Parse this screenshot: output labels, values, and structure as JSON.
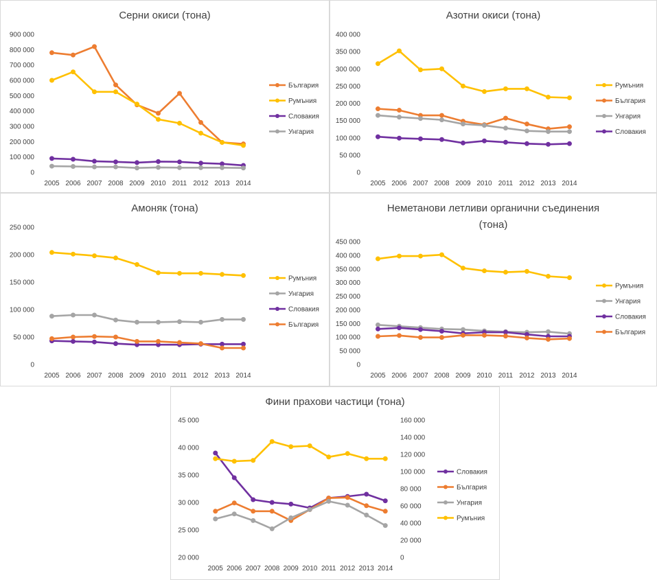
{
  "colors": {
    "bulgaria": "#ED7D31",
    "romania": "#FFC000",
    "slovakia": "#7030A0",
    "hungary": "#A5A5A5"
  },
  "chart_data": [
    {
      "type": "line",
      "title": "Серни окиси (тона)",
      "x": [
        "2005",
        "2006",
        "2007",
        "2008",
        "2009",
        "2010",
        "2011",
        "2012",
        "2013",
        "2014"
      ],
      "ylim": [
        0,
        900000
      ],
      "yticks": [
        "0",
        "100 000",
        "200 000",
        "300 000",
        "400 000",
        "500 000",
        "600 000",
        "700 000",
        "800 000",
        "900 000"
      ],
      "legend": "right",
      "series": [
        {
          "name": "България",
          "color": "#ED7D31",
          "values": [
            780000,
            765000,
            820000,
            570000,
            440000,
            385000,
            515000,
            325000,
            195000,
            185000
          ]
        },
        {
          "name": "Румъния",
          "color": "#FFC000",
          "values": [
            600000,
            655000,
            525000,
            525000,
            445000,
            345000,
            320000,
            255000,
            195000,
            175000
          ]
        },
        {
          "name": "Словакия",
          "color": "#7030A0",
          "values": [
            90000,
            85000,
            72000,
            68000,
            63000,
            70000,
            68000,
            60000,
            55000,
            45000
          ]
        },
        {
          "name": "Унгария",
          "color": "#A5A5A5",
          "values": [
            40000,
            38000,
            35000,
            35000,
            28000,
            32000,
            30000,
            30000,
            30000,
            28000
          ]
        }
      ]
    },
    {
      "type": "line",
      "title": "Азотни окиси (тона)",
      "x": [
        "2005",
        "2006",
        "2007",
        "2008",
        "2009",
        "2010",
        "2011",
        "2012",
        "2013",
        "2014"
      ],
      "ylim": [
        0,
        400000
      ],
      "yticks": [
        "0",
        "50 000",
        "100 000",
        "150 000",
        "200 000",
        "250 000",
        "300 000",
        "350 000",
        "400 000"
      ],
      "legend": "right",
      "series": [
        {
          "name": "Румъния",
          "color": "#FFC000",
          "values": [
            315000,
            352000,
            297000,
            300000,
            250000,
            234000,
            242000,
            242000,
            218000,
            216000
          ]
        },
        {
          "name": "България",
          "color": "#ED7D31",
          "values": [
            184000,
            180000,
            165000,
            165000,
            148000,
            138000,
            157000,
            140000,
            126000,
            132000
          ]
        },
        {
          "name": "Унгария",
          "color": "#A5A5A5",
          "values": [
            165000,
            160000,
            156000,
            152000,
            140000,
            136000,
            128000,
            120000,
            118000,
            118000
          ]
        },
        {
          "name": "Словакия",
          "color": "#7030A0",
          "values": [
            103000,
            99000,
            97000,
            95000,
            85000,
            91000,
            87000,
            83000,
            81000,
            83000
          ]
        }
      ]
    },
    {
      "type": "line",
      "title": "Амоняк (тона)",
      "x": [
        "2005",
        "2006",
        "2007",
        "2008",
        "2009",
        "2010",
        "2011",
        "2012",
        "2013",
        "2014"
      ],
      "ylim": [
        0,
        250000
      ],
      "yticks": [
        "0",
        "50 000",
        "100 000",
        "150 000",
        "200 000",
        "250 000"
      ],
      "legend": "right",
      "series": [
        {
          "name": "Румъния",
          "color": "#FFC000",
          "values": [
            204000,
            201000,
            198000,
            194000,
            182000,
            167000,
            166000,
            166000,
            164000,
            162000
          ]
        },
        {
          "name": "Унгария",
          "color": "#A5A5A5",
          "values": [
            88000,
            90000,
            90000,
            81000,
            77000,
            77000,
            78000,
            77000,
            82000,
            82000
          ]
        },
        {
          "name": "Словакия",
          "color": "#7030A0",
          "values": [
            43000,
            42000,
            41000,
            38000,
            36000,
            36000,
            36000,
            37000,
            37000,
            37000
          ]
        },
        {
          "name": "България",
          "color": "#ED7D31",
          "values": [
            47000,
            50000,
            51000,
            50000,
            42000,
            42000,
            40000,
            38000,
            30000,
            30000
          ]
        }
      ]
    },
    {
      "type": "line",
      "title": "Неметанови летливи органични съединения (тона)",
      "title_lines": [
        "Неметанови летливи органични съединения",
        "(тона)"
      ],
      "x": [
        "2005",
        "2006",
        "2007",
        "2008",
        "2009",
        "2010",
        "2011",
        "2012",
        "2013",
        "2014"
      ],
      "ylim": [
        0,
        450000
      ],
      "yticks": [
        "0",
        "50 000",
        "100 000",
        "150 000",
        "200 000",
        "250 000",
        "300 000",
        "350 000",
        "400 000",
        "450 000"
      ],
      "legend": "right",
      "series": [
        {
          "name": "Румъния",
          "color": "#FFC000",
          "values": [
            387000,
            397000,
            397000,
            402000,
            353000,
            343000,
            338000,
            341000,
            323000,
            318000
          ]
        },
        {
          "name": "Унгария",
          "color": "#A5A5A5",
          "values": [
            145000,
            140000,
            135000,
            130000,
            128000,
            123000,
            120000,
            118000,
            120000,
            113000
          ]
        },
        {
          "name": "Словакия",
          "color": "#7030A0",
          "values": [
            130000,
            134000,
            128000,
            122000,
            114000,
            118000,
            118000,
            110000,
            103000,
            103000
          ]
        },
        {
          "name": "България",
          "color": "#ED7D31",
          "values": [
            103000,
            106000,
            99000,
            99000,
            107000,
            107000,
            104000,
            97000,
            92000,
            95000
          ]
        }
      ]
    },
    {
      "type": "line",
      "title": "Фини прахови частици (тона)",
      "x": [
        "2005",
        "2006",
        "2007",
        "2008",
        "2009",
        "2010",
        "2011",
        "2012",
        "2013",
        "2014"
      ],
      "ylim": [
        20000,
        45000
      ],
      "yticks": [
        "20 000",
        "25 000",
        "30 000",
        "35 000",
        "40 000",
        "45 000"
      ],
      "y2lim": [
        0,
        160000
      ],
      "y2ticks": [
        "0",
        "20 000",
        "40 000",
        "60 000",
        "80 000",
        "100 000",
        "120 000",
        "140 000",
        "160 000"
      ],
      "legend": "right",
      "series": [
        {
          "name": "Словакия",
          "color": "#7030A0",
          "axis": "left",
          "values": [
            39000,
            34500,
            30500,
            30000,
            29700,
            29000,
            30800,
            31100,
            31500,
            30300
          ]
        },
        {
          "name": "България",
          "color": "#ED7D31",
          "axis": "left",
          "values": [
            28400,
            29900,
            28400,
            28400,
            26700,
            28700,
            30800,
            30900,
            29400,
            28400
          ]
        },
        {
          "name": "Унгария",
          "color": "#A5A5A5",
          "axis": "left",
          "values": [
            27000,
            27900,
            26700,
            25200,
            27200,
            28700,
            30200,
            29500,
            27700,
            25800
          ]
        },
        {
          "name": "Румъния",
          "color": "#FFC000",
          "axis": "right",
          "values": [
            115000,
            112000,
            113000,
            135000,
            129000,
            130000,
            117000,
            121000,
            115000,
            115000
          ]
        }
      ]
    }
  ]
}
